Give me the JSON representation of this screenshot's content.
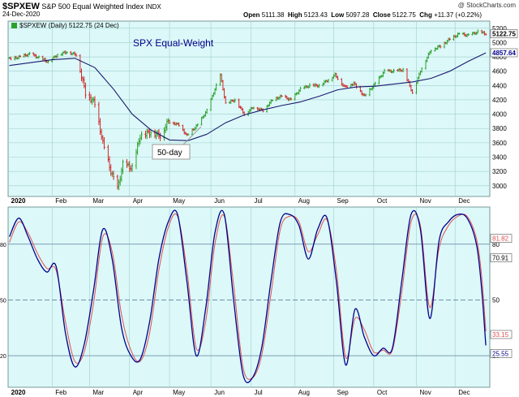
{
  "header": {
    "symbol": "$SPXEW",
    "index_name": "S&P 500 Equal Weighted Index",
    "exchange": "INDX",
    "date": "24-Dec-2020",
    "watermark": "@ StockCharts.com",
    "ohlc_labels": {
      "open": "Open",
      "high": "High",
      "low": "Low",
      "close": "Close",
      "chg": "Chg"
    },
    "ohlc_values": {
      "open": "5111.38",
      "high": "5123.43",
      "low": "5097.28",
      "close": "5122.75",
      "chg": "+11.37 (+0.22%)"
    },
    "legend": "$SPXEW (Daily) 5122.75 (24 Dec)"
  },
  "colors": {
    "plot_bg": "#dcf8f8",
    "grid": "#9fcfcf",
    "up": "#2aa02a",
    "down": "#d02828",
    "ma": "#1a1a6e",
    "k_line": "#00008b",
    "d_line": "#e05050",
    "note_text": "#00008b"
  },
  "chart_data": [
    {
      "type": "ohlc",
      "title": "SPX Equal-Weight",
      "annotation": "50-day",
      "x_labels": [
        "2020",
        "Feb",
        "Mar",
        "Apr",
        "May",
        "Jun",
        "Jul",
        "Aug",
        "Sep",
        "Oct",
        "Nov",
        "Dec"
      ],
      "y_ticks": [
        "5200",
        "5000",
        "4800",
        "4600",
        "4400",
        "4200",
        "4000",
        "3800",
        "3600",
        "3400",
        "3200",
        "3000"
      ],
      "ylim": [
        2850,
        5300
      ],
      "last_close_label": "5122.75",
      "ma_label": "4857.64",
      "price_path": [
        [
          "2020-01-02",
          4770
        ],
        [
          "2020-01-10",
          4800
        ],
        [
          "2020-01-17",
          4840
        ],
        [
          "2020-01-24",
          4790
        ],
        [
          "2020-01-31",
          4730
        ],
        [
          "2020-02-07",
          4830
        ],
        [
          "2020-02-14",
          4870
        ],
        [
          "2020-02-21",
          4830
        ],
        [
          "2020-02-28",
          4300
        ],
        [
          "2020-03-06",
          4150
        ],
        [
          "2020-03-12",
          3600
        ],
        [
          "2020-03-18",
          3200
        ],
        [
          "2020-03-23",
          2950
        ],
        [
          "2020-03-27",
          3300
        ],
        [
          "2020-04-03",
          3250
        ],
        [
          "2020-04-09",
          3700
        ],
        [
          "2020-04-17",
          3750
        ],
        [
          "2020-04-24",
          3700
        ],
        [
          "2020-04-30",
          3900
        ],
        [
          "2020-05-08",
          3850
        ],
        [
          "2020-05-14",
          3700
        ],
        [
          "2020-05-22",
          3850
        ],
        [
          "2020-05-29",
          4050
        ],
        [
          "2020-06-08",
          4550
        ],
        [
          "2020-06-12",
          4150
        ],
        [
          "2020-06-19",
          4200
        ],
        [
          "2020-06-26",
          4000
        ],
        [
          "2020-07-03",
          4100
        ],
        [
          "2020-07-10",
          4050
        ],
        [
          "2020-07-17",
          4200
        ],
        [
          "2020-07-24",
          4250
        ],
        [
          "2020-07-31",
          4200
        ],
        [
          "2020-08-07",
          4350
        ],
        [
          "2020-08-14",
          4400
        ],
        [
          "2020-08-21",
          4400
        ],
        [
          "2020-08-28",
          4480
        ],
        [
          "2020-09-02",
          4550
        ],
        [
          "2020-09-09",
          4380
        ],
        [
          "2020-09-16",
          4430
        ],
        [
          "2020-09-24",
          4250
        ],
        [
          "2020-10-01",
          4400
        ],
        [
          "2020-10-09",
          4600
        ],
        [
          "2020-10-16",
          4600
        ],
        [
          "2020-10-23",
          4620
        ],
        [
          "2020-10-30",
          4300
        ],
        [
          "2020-11-06",
          4650
        ],
        [
          "2020-11-13",
          4900
        ],
        [
          "2020-11-20",
          4950
        ],
        [
          "2020-11-27",
          5050
        ],
        [
          "2020-12-04",
          5120
        ],
        [
          "2020-12-11",
          5100
        ],
        [
          "2020-12-18",
          5150
        ],
        [
          "2020-12-24",
          5122
        ]
      ],
      "ma50_path": [
        [
          "2020-01-02",
          4680
        ],
        [
          "2020-02-03",
          4760
        ],
        [
          "2020-02-20",
          4780
        ],
        [
          "2020-03-06",
          4650
        ],
        [
          "2020-03-20",
          4350
        ],
        [
          "2020-04-03",
          4000
        ],
        [
          "2020-04-17",
          3780
        ],
        [
          "2020-05-01",
          3640
        ],
        [
          "2020-05-15",
          3630
        ],
        [
          "2020-05-29",
          3720
        ],
        [
          "2020-06-12",
          3880
        ],
        [
          "2020-06-26",
          3990
        ],
        [
          "2020-07-10",
          4060
        ],
        [
          "2020-07-24",
          4120
        ],
        [
          "2020-08-07",
          4170
        ],
        [
          "2020-08-21",
          4250
        ],
        [
          "2020-09-04",
          4340
        ],
        [
          "2020-09-18",
          4380
        ],
        [
          "2020-10-02",
          4390
        ],
        [
          "2020-10-16",
          4420
        ],
        [
          "2020-10-30",
          4450
        ],
        [
          "2020-11-13",
          4500
        ],
        [
          "2020-11-27",
          4600
        ],
        [
          "2020-12-11",
          4740
        ],
        [
          "2020-12-24",
          4857
        ]
      ]
    },
    {
      "type": "line",
      "x_labels": [
        "2020",
        "Feb",
        "Mar",
        "Apr",
        "May",
        "Jun",
        "Jul",
        "Aug",
        "Sep",
        "Oct",
        "Nov",
        "Dec"
      ],
      "y_ticks": [
        "80",
        "50",
        "20"
      ],
      "ylim": [
        3,
        100
      ],
      "right_labels": [
        "81.82",
        "70.91",
        "33.15",
        "25.55"
      ],
      "series": [
        {
          "points": [
            [
              "2020-01-02",
              84
            ],
            [
              "2020-01-09",
              94
            ],
            [
              "2020-01-16",
              84
            ],
            [
              "2020-01-23",
              72
            ],
            [
              "2020-01-30",
              65
            ],
            [
              "2020-02-06",
              68
            ],
            [
              "2020-02-13",
              32
            ],
            [
              "2020-02-20",
              14
            ],
            [
              "2020-02-27",
              26
            ],
            [
              "2020-03-05",
              55
            ],
            [
              "2020-03-12",
              88
            ],
            [
              "2020-03-19",
              72
            ],
            [
              "2020-03-26",
              35
            ],
            [
              "2020-04-02",
              20
            ],
            [
              "2020-04-09",
              18
            ],
            [
              "2020-04-16",
              38
            ],
            [
              "2020-04-23",
              72
            ],
            [
              "2020-04-30",
              92
            ],
            [
              "2020-05-07",
              96
            ],
            [
              "2020-05-14",
              60
            ],
            [
              "2020-05-21",
              20
            ],
            [
              "2020-05-28",
              45
            ],
            [
              "2020-06-04",
              86
            ],
            [
              "2020-06-11",
              96
            ],
            [
              "2020-06-18",
              50
            ],
            [
              "2020-06-25",
              10
            ],
            [
              "2020-07-02",
              8
            ],
            [
              "2020-07-09",
              24
            ],
            [
              "2020-07-16",
              60
            ],
            [
              "2020-07-23",
              92
            ],
            [
              "2020-07-30",
              96
            ],
            [
              "2020-08-06",
              90
            ],
            [
              "2020-08-13",
              72
            ],
            [
              "2020-08-20",
              88
            ],
            [
              "2020-08-27",
              94
            ],
            [
              "2020-09-03",
              60
            ],
            [
              "2020-09-10",
              15
            ],
            [
              "2020-09-17",
              45
            ],
            [
              "2020-09-24",
              30
            ],
            [
              "2020-10-01",
              20
            ],
            [
              "2020-10-08",
              24
            ],
            [
              "2020-10-15",
              24
            ],
            [
              "2020-10-22",
              60
            ],
            [
              "2020-10-29",
              96
            ],
            [
              "2020-11-05",
              88
            ],
            [
              "2020-11-12",
              40
            ],
            [
              "2020-11-19",
              82
            ],
            [
              "2020-11-26",
              92
            ],
            [
              "2020-12-03",
              96
            ],
            [
              "2020-12-10",
              94
            ],
            [
              "2020-12-17",
              80
            ],
            [
              "2020-12-21",
              55
            ],
            [
              "2020-12-24",
              25.55
            ]
          ]
        },
        {
          "points": [
            [
              "2020-01-02",
              81
            ],
            [
              "2020-01-09",
              92
            ],
            [
              "2020-01-16",
              86
            ],
            [
              "2020-01-23",
              75
            ],
            [
              "2020-01-30",
              67
            ],
            [
              "2020-02-06",
              66
            ],
            [
              "2020-02-13",
              38
            ],
            [
              "2020-02-20",
              17
            ],
            [
              "2020-02-27",
              22
            ],
            [
              "2020-03-05",
              48
            ],
            [
              "2020-03-12",
              84
            ],
            [
              "2020-03-19",
              76
            ],
            [
              "2020-03-26",
              42
            ],
            [
              "2020-04-02",
              23
            ],
            [
              "2020-04-09",
              17
            ],
            [
              "2020-04-16",
              32
            ],
            [
              "2020-04-23",
              66
            ],
            [
              "2020-04-30",
              89
            ],
            [
              "2020-05-07",
              95
            ],
            [
              "2020-05-14",
              66
            ],
            [
              "2020-05-21",
              24
            ],
            [
              "2020-05-28",
              38
            ],
            [
              "2020-06-04",
              80
            ],
            [
              "2020-06-11",
              95
            ],
            [
              "2020-06-18",
              58
            ],
            [
              "2020-06-25",
              14
            ],
            [
              "2020-07-02",
              8
            ],
            [
              "2020-07-09",
              20
            ],
            [
              "2020-07-16",
              53
            ],
            [
              "2020-07-23",
              88
            ],
            [
              "2020-07-30",
              95
            ],
            [
              "2020-08-06",
              92
            ],
            [
              "2020-08-13",
              76
            ],
            [
              "2020-08-20",
              85
            ],
            [
              "2020-08-27",
              93
            ],
            [
              "2020-09-03",
              66
            ],
            [
              "2020-09-10",
              19
            ],
            [
              "2020-09-17",
              40
            ],
            [
              "2020-09-24",
              34
            ],
            [
              "2020-10-01",
              22
            ],
            [
              "2020-10-08",
              23
            ],
            [
              "2020-10-15",
              23
            ],
            [
              "2020-10-22",
              54
            ],
            [
              "2020-10-29",
              92
            ],
            [
              "2020-11-05",
              90
            ],
            [
              "2020-11-12",
              46
            ],
            [
              "2020-11-19",
              78
            ],
            [
              "2020-11-26",
              90
            ],
            [
              "2020-12-03",
              95
            ],
            [
              "2020-12-10",
              95
            ],
            [
              "2020-12-17",
              83
            ],
            [
              "2020-12-21",
              62
            ],
            [
              "2020-12-24",
              33.15
            ]
          ]
        }
      ]
    }
  ]
}
